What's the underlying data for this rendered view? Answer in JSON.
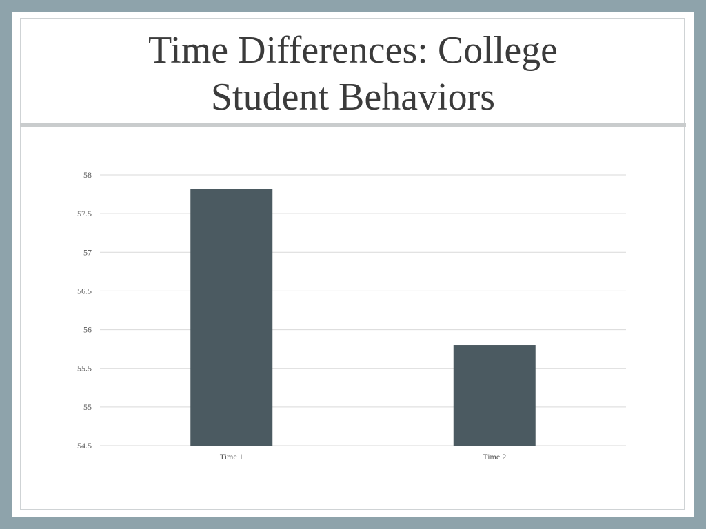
{
  "slide": {
    "title_line1": "Time Differences: College",
    "title_line2": "Student Behaviors"
  },
  "colors": {
    "background": "#8ea3ab",
    "bar": "#4b5a61",
    "grid": "#d9d9d9"
  },
  "chart_data": {
    "type": "bar",
    "categories": [
      "Time 1",
      "Time 2"
    ],
    "values": [
      57.82,
      55.8
    ],
    "title": "",
    "xlabel": "",
    "ylabel": "",
    "ylim": [
      54.5,
      58
    ],
    "yticks": [
      "54.5",
      "55",
      "55.5",
      "56",
      "56.5",
      "57",
      "57.5",
      "58"
    ],
    "grid": true,
    "legend": "none"
  }
}
